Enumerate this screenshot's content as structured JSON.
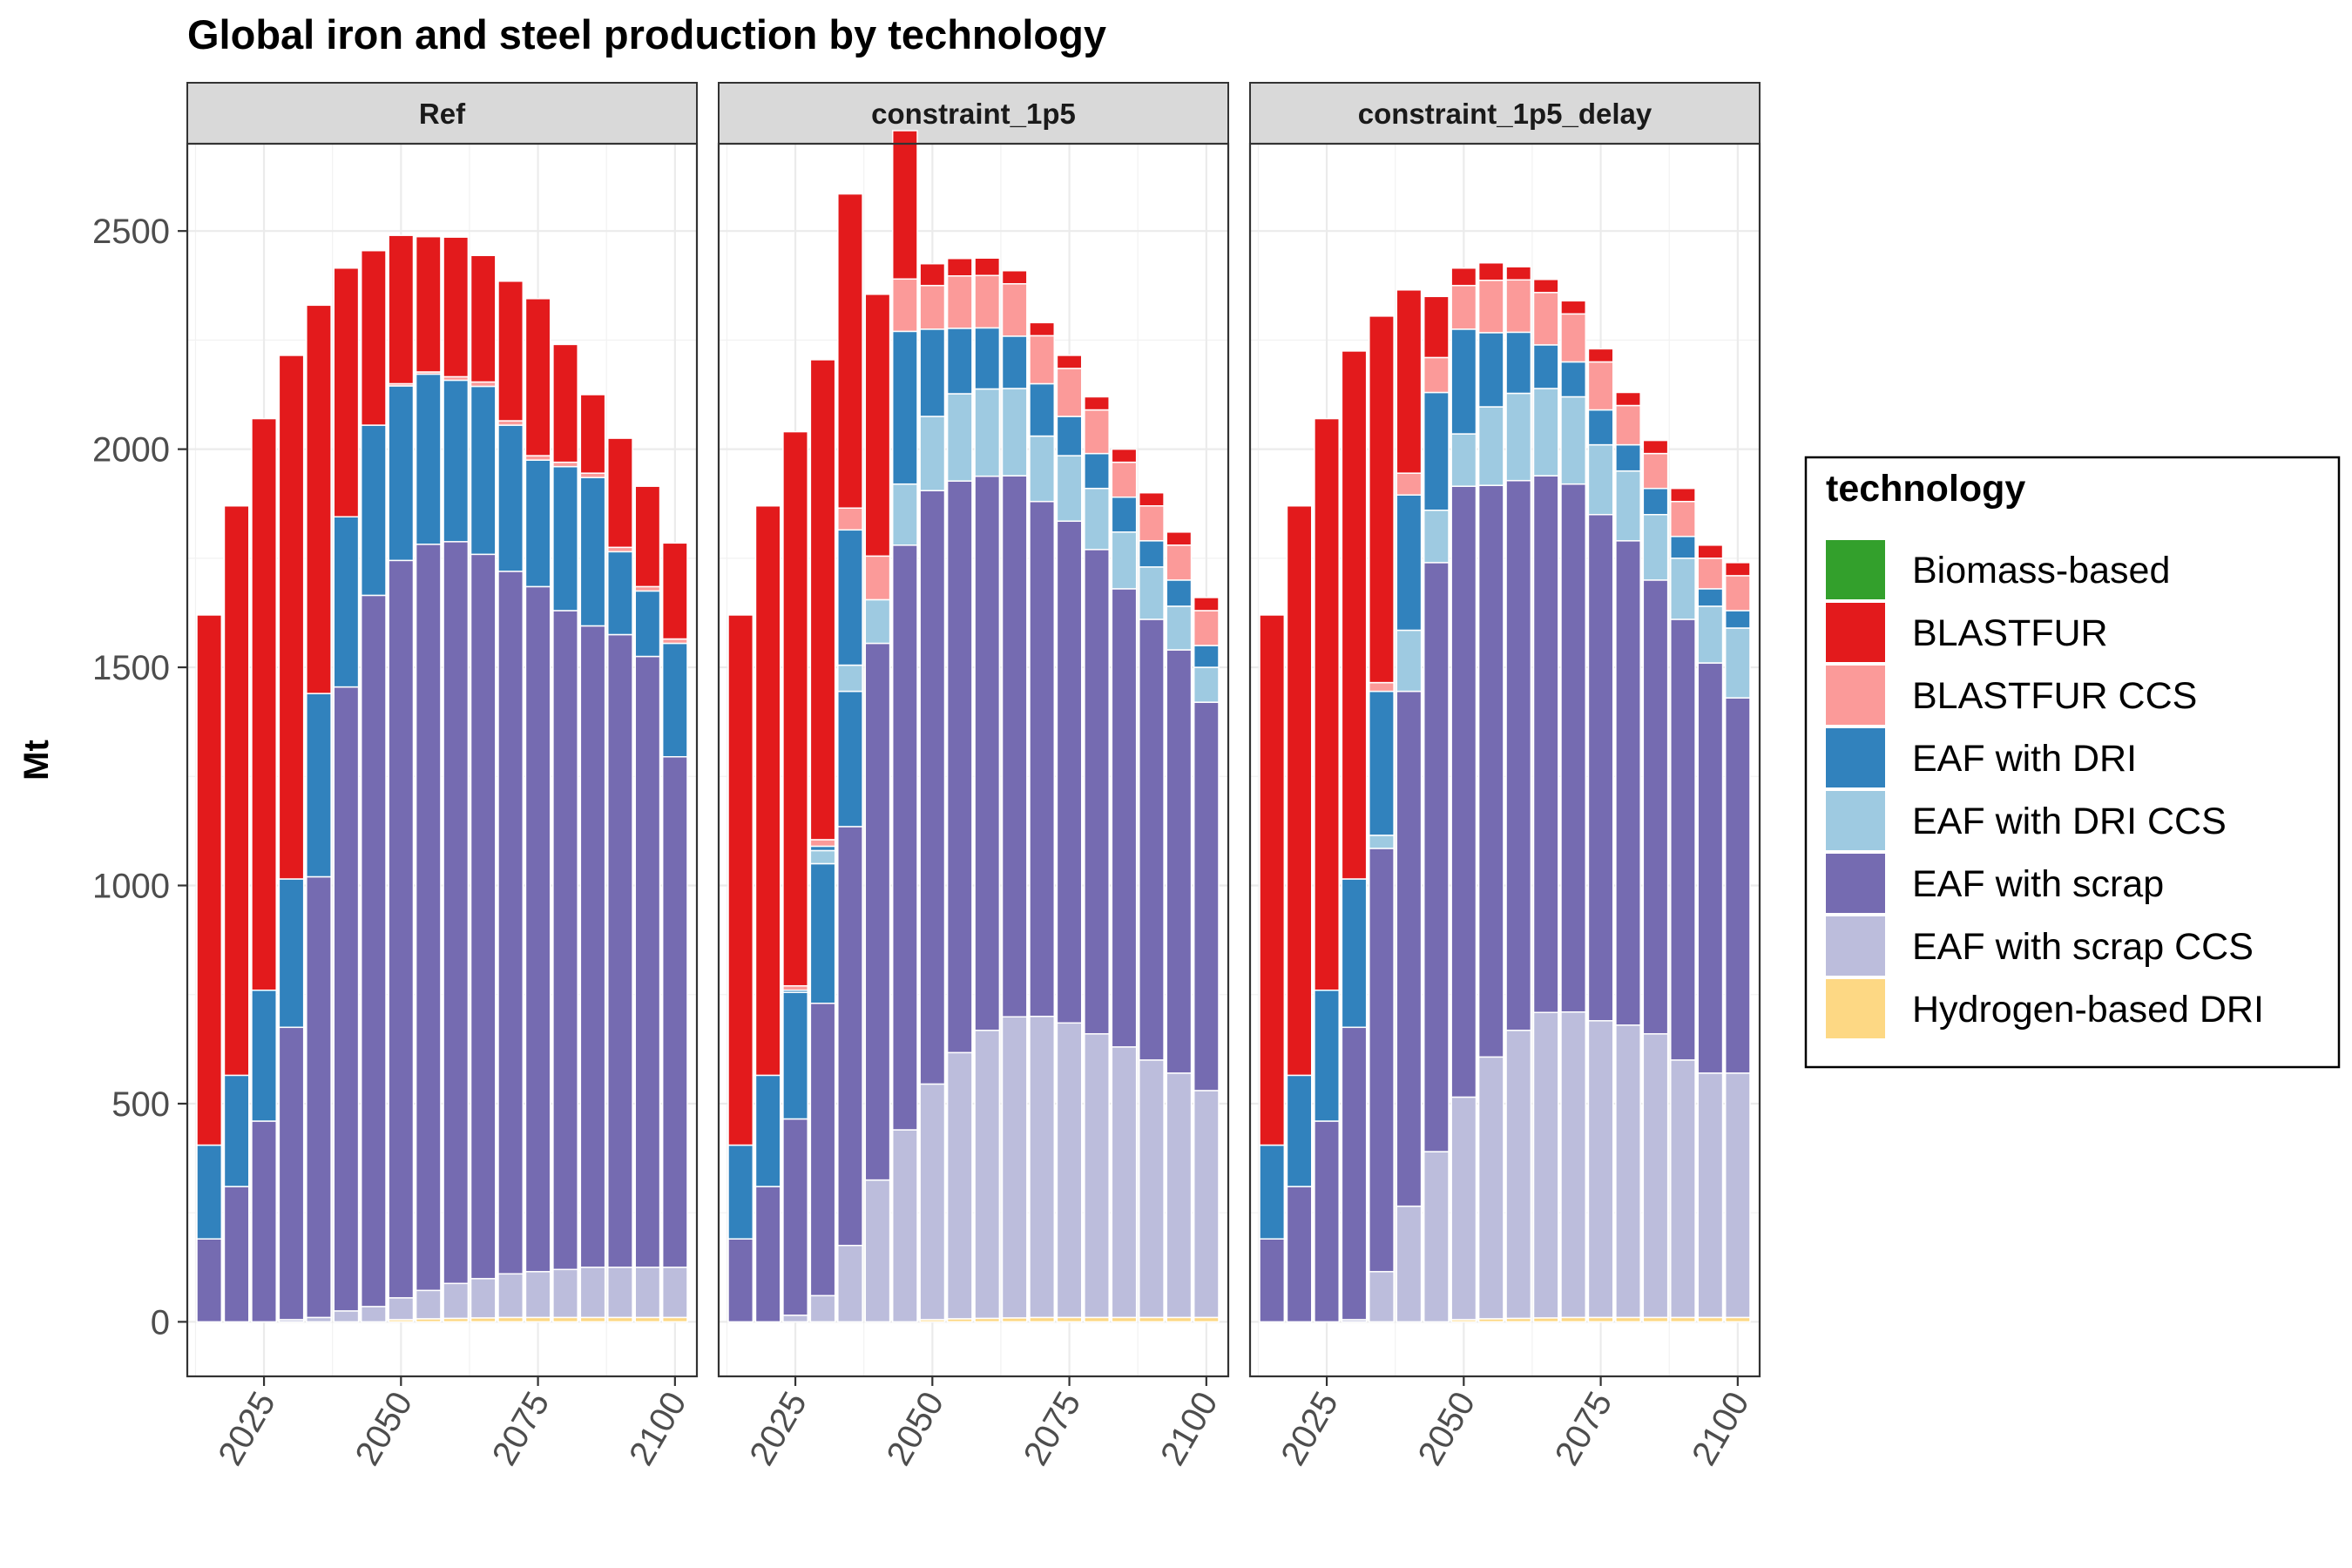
{
  "chart_data": {
    "type": "bar",
    "stacked": true,
    "title": "Global iron and steel production by technology",
    "ylabel": "Mt",
    "xlabel": "",
    "ylim": [
      -125,
      2700
    ],
    "xlim": [
      2011,
      2104
    ],
    "y_ticks": [
      0,
      500,
      1000,
      1500,
      2000,
      2500
    ],
    "x_ticks": [
      2025,
      2050,
      2075,
      2100
    ],
    "grid": true,
    "legend": {
      "title": "technology",
      "position": "right"
    },
    "technologies": [
      {
        "name": "Biomass-based",
        "color": "#33a02c"
      },
      {
        "name": "BLASTFUR",
        "color": "#e31a1c"
      },
      {
        "name": "BLASTFUR CCS",
        "color": "#fb9a99"
      },
      {
        "name": "EAF with DRI",
        "color": "#3182bd"
      },
      {
        "name": "EAF with DRI CCS",
        "color": "#9ecae1"
      },
      {
        "name": "EAF with scrap",
        "color": "#756bb1"
      },
      {
        "name": "EAF with scrap CCS",
        "color": "#bcbddc"
      },
      {
        "name": "Hydrogen-based DRI",
        "color": "#fdd884"
      }
    ],
    "x": [
      2015,
      2020,
      2025,
      2030,
      2035,
      2040,
      2045,
      2050,
      2055,
      2060,
      2065,
      2070,
      2075,
      2080,
      2085,
      2090,
      2095,
      2100
    ],
    "panels": [
      {
        "name": "Ref",
        "series": [
          {
            "name": "Hydrogen-based DRI",
            "values": [
              0,
              0,
              0,
              0,
              0,
              0,
              0,
              5,
              7,
              8,
              9,
              10,
              10,
              10,
              10,
              10,
              10,
              10
            ]
          },
          {
            "name": "Biomass-based",
            "values": [
              0,
              0,
              0,
              0,
              0,
              0,
              0,
              0,
              0,
              0,
              0,
              0,
              0,
              0,
              0,
              0,
              0,
              0
            ]
          },
          {
            "name": "EAF with scrap CCS",
            "values": [
              0,
              0,
              0,
              5,
              10,
              25,
              35,
              50,
              65,
              80,
              90,
              100,
              105,
              110,
              115,
              115,
              115,
              115
            ]
          },
          {
            "name": "EAF with scrap",
            "values": [
              190,
              310,
              460,
              670,
              1010,
              1430,
              1630,
              1690,
              1710,
              1700,
              1660,
              1610,
              1570,
              1510,
              1470,
              1450,
              1400,
              1170
            ]
          },
          {
            "name": "EAF with DRI",
            "values": [
              215,
              255,
              300,
              340,
              420,
              390,
              390,
              400,
              390,
              370,
              385,
              335,
              290,
              330,
              340,
              190,
              150,
              260
            ]
          },
          {
            "name": "EAF with DRI CCS",
            "values": [
              0,
              0,
              0,
              0,
              0,
              0,
              0,
              0,
              0,
              0,
              0,
              0,
              0,
              0,
              0,
              0,
              0,
              0
            ]
          },
          {
            "name": "BLASTFUR CCS",
            "values": [
              0,
              0,
              0,
              0,
              0,
              0,
              0,
              5,
              5,
              8,
              10,
              10,
              10,
              10,
              10,
              10,
              10,
              10
            ]
          },
          {
            "name": "BLASTFUR",
            "values": [
              1215,
              1305,
              1310,
              1200,
              890,
              570,
              400,
              340,
              310,
              320,
              290,
              320,
              360,
              270,
              180,
              250,
              230,
              220
            ]
          }
        ]
      },
      {
        "name": "constraint_1p5",
        "series": [
          {
            "name": "Hydrogen-based DRI",
            "values": [
              0,
              0,
              0,
              0,
              0,
              0,
              0,
              5,
              7,
              8,
              9,
              10,
              10,
              10,
              10,
              10,
              10,
              10
            ]
          },
          {
            "name": "Biomass-based",
            "values": [
              0,
              0,
              0,
              0,
              0,
              0,
              0,
              0,
              0,
              0,
              0,
              0,
              0,
              0,
              0,
              0,
              0,
              0
            ]
          },
          {
            "name": "EAF with scrap CCS",
            "values": [
              0,
              0,
              15,
              60,
              175,
              325,
              440,
              540,
              610,
              660,
              690,
              690,
              675,
              650,
              620,
              590,
              560,
              520
            ]
          },
          {
            "name": "EAF with scrap",
            "values": [
              190,
              310,
              450,
              670,
              960,
              1230,
              1340,
              1360,
              1310,
              1270,
              1240,
              1180,
              1150,
              1110,
              1050,
              1010,
              970,
              890
            ]
          },
          {
            "name": "EAF with DRI",
            "values": [
              215,
              255,
              290,
              320,
              310,
              0,
              0,
              0,
              0,
              0,
              0,
              0,
              0,
              0,
              0,
              0,
              0,
              0
            ]
          },
          {
            "name": "EAF with DRI CCS",
            "values": [
              0,
              0,
              0,
              30,
              60,
              100,
              140,
              170,
              200,
              200,
              200,
              150,
              150,
              140,
              130,
              120,
              100,
              80
            ]
          },
          {
            "name": "EAF with DRI",
            "values": [
              0,
              0,
              5,
              10,
              310,
              0,
              350,
              200,
              150,
              140,
              120,
              120,
              90,
              80,
              80,
              60,
              60,
              50
            ]
          },
          {
            "name": "BLASTFUR CCS",
            "values": [
              0,
              0,
              10,
              15,
              50,
              100,
              120,
              100,
              120,
              120,
              120,
              110,
              110,
              100,
              80,
              80,
              80,
              80
            ]
          },
          {
            "name": "BLASTFUR",
            "values": [
              1215,
              1305,
              1270,
              1100,
              720,
              600,
              340,
              50,
              40,
              40,
              30,
              30,
              30,
              30,
              30,
              30,
              30,
              30
            ]
          }
        ]
      },
      {
        "name": "constraint_1p5_delay",
        "series": [
          {
            "name": "Hydrogen-based DRI",
            "values": [
              0,
              0,
              0,
              0,
              0,
              0,
              0,
              5,
              7,
              8,
              9,
              10,
              10,
              10,
              10,
              10,
              10,
              10
            ]
          },
          {
            "name": "Biomass-based",
            "values": [
              0,
              0,
              0,
              0,
              0,
              0,
              0,
              0,
              0,
              0,
              0,
              0,
              0,
              0,
              0,
              0,
              0,
              0
            ]
          },
          {
            "name": "EAF with scrap CCS",
            "values": [
              0,
              0,
              0,
              5,
              115,
              265,
              390,
              510,
              600,
              660,
              700,
              700,
              680,
              670,
              650,
              590,
              560,
              560
            ]
          },
          {
            "name": "EAF with scrap",
            "values": [
              190,
              310,
              460,
              670,
              970,
              1180,
              1350,
              1400,
              1310,
              1260,
              1230,
              1210,
              1160,
              1110,
              1040,
              1010,
              940,
              860
            ]
          },
          {
            "name": "EAF with DRI",
            "values": [
              215,
              255,
              300,
              340,
              0,
              0,
              0,
              0,
              0,
              0,
              0,
              0,
              0,
              0,
              0,
              0,
              0,
              0
            ]
          },
          {
            "name": "EAF with DRI CCS",
            "values": [
              0,
              0,
              0,
              0,
              30,
              140,
              120,
              120,
              180,
              200,
              200,
              200,
              160,
              160,
              150,
              140,
              130,
              160
            ]
          },
          {
            "name": "EAF with DRI",
            "values": [
              0,
              0,
              0,
              0,
              330,
              310,
              270,
              240,
              170,
              140,
              100,
              80,
              80,
              60,
              60,
              50,
              40,
              40
            ]
          },
          {
            "name": "BLASTFUR CCS",
            "values": [
              0,
              0,
              0,
              0,
              20,
              50,
              80,
              100,
              120,
              120,
              120,
              110,
              110,
              90,
              80,
              80,
              70,
              80
            ]
          },
          {
            "name": "BLASTFUR",
            "values": [
              1215,
              1305,
              1310,
              1210,
              840,
              420,
              140,
              40,
              40,
              30,
              30,
              30,
              30,
              30,
              30,
              30,
              30,
              30
            ]
          }
        ]
      }
    ]
  }
}
